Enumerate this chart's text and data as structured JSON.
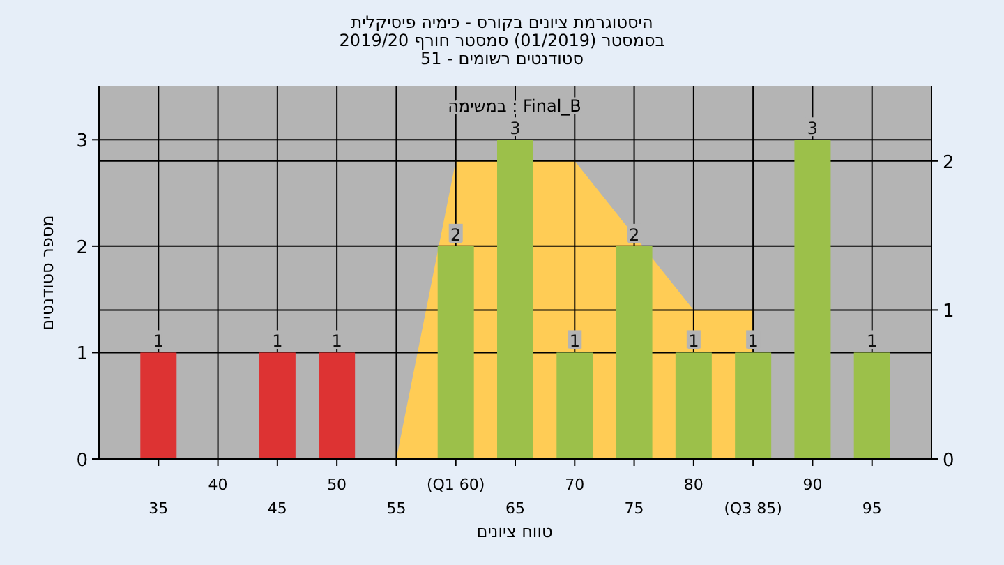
{
  "chart_data": {
    "type": "bar",
    "title": "היסטוגרמת ציונים בקורס - כימיה פיסיקלית",
    "subtitle": "בסמסטר  (01/2019)  סמסטר חורף 2019/20\nסטודנטים רשומים - 51",
    "xlabel": "טווח ציונים",
    "ylabel": "מספר סטודנטים",
    "annotations": [
      "במשימה : Final_B"
    ],
    "categories": [
      "35",
      "40",
      "45",
      "50",
      "55",
      "(Q1 60)",
      "65",
      "70",
      "75",
      "80",
      "(Q3 85)",
      "90",
      "95"
    ],
    "series": [
      {
        "values": [
          1,
          0,
          1,
          1,
          0,
          2,
          3,
          1,
          2,
          1,
          1,
          3,
          1
        ],
        "value_labels": [
          "1",
          null,
          "1",
          "1",
          null,
          "2",
          "3",
          "1",
          "2",
          "1",
          "1",
          "3",
          "1"
        ],
        "colors": [
          "#dd3333",
          "#dd3333",
          "#dd3333",
          "#dd3333",
          "#dd3333",
          "#9cc04a",
          "#9cc04a",
          "#9cc04a",
          "#9cc04a",
          "#9cc04a",
          "#9cc04a",
          "#9cc04a",
          "#9cc04a"
        ]
      },
      {
        "type": "area",
        "axis": "y2",
        "color": "#ffcc55",
        "values": [
          null,
          null,
          null,
          null,
          0,
          2,
          null,
          2,
          null,
          1,
          1,
          null,
          null
        ]
      }
    ],
    "ylim": [
      0,
      3.5
    ],
    "yticks": [
      0,
      1,
      2,
      3
    ],
    "y2lim": [
      0,
      2.5
    ],
    "y2ticks": [
      0,
      1,
      2
    ],
    "grid": true
  }
}
